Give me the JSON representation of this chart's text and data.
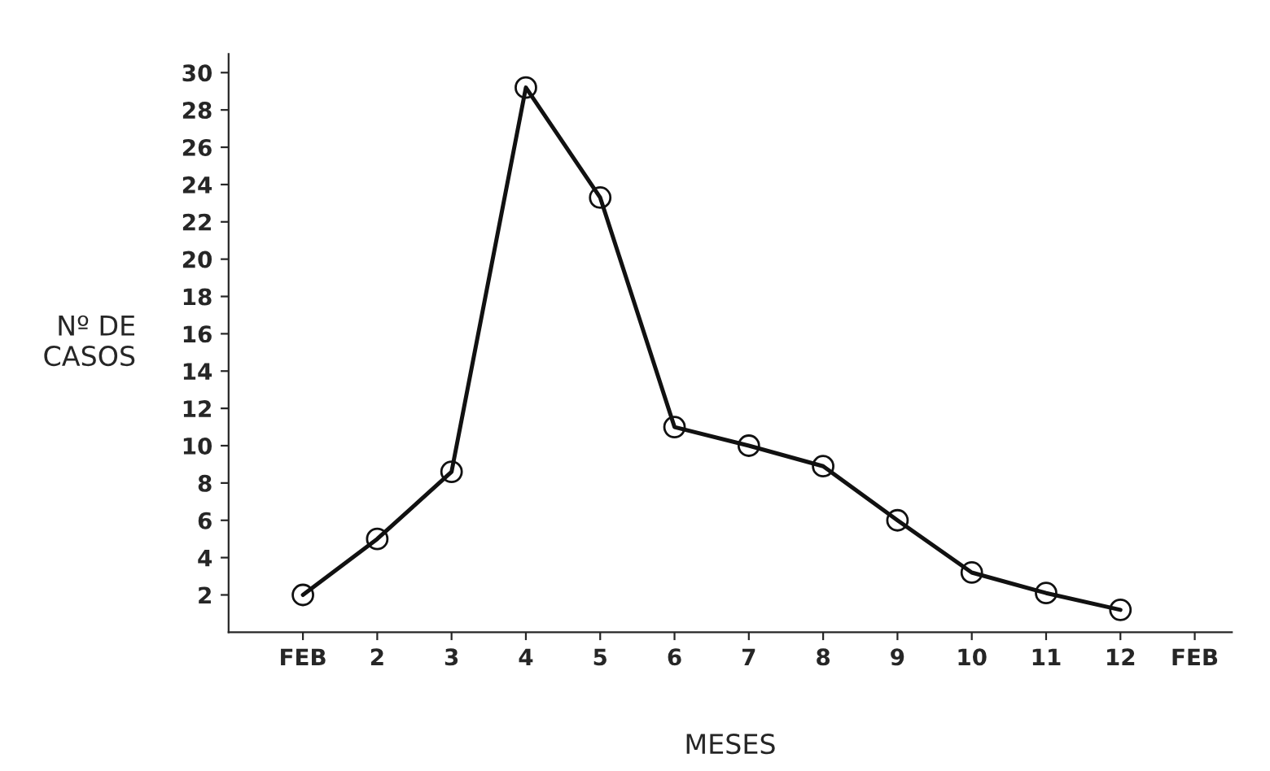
{
  "chart_data": {
    "type": "line",
    "xlabel": "MESES",
    "ylabel": "Nº DE\nCASOS",
    "categories": [
      "FEB",
      "2",
      "3",
      "4",
      "5",
      "6",
      "7",
      "8",
      "9",
      "10",
      "11",
      "12",
      "FEB"
    ],
    "series": [
      {
        "color": "#111111",
        "values": [
          2,
          5,
          8.6,
          29.2,
          23.3,
          11,
          10,
          8.9,
          6,
          3.2,
          2.1,
          1.2,
          null
        ]
      }
    ],
    "ylim": [
      0,
      31
    ],
    "yticks": [
      2,
      4,
      6,
      8,
      10,
      12,
      14,
      16,
      18,
      20,
      22,
      24,
      26,
      28,
      30
    ],
    "marker": "circle",
    "line_style": "solid",
    "grid": false,
    "legend": false
  }
}
